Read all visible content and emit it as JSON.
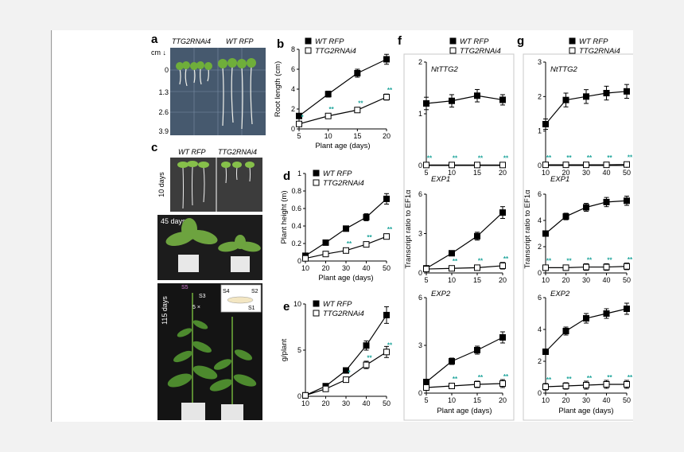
{
  "panels": {
    "a": {
      "label": "a",
      "col_labels": [
        "TTG2RNAi4",
        "WT RFP"
      ],
      "scale_unit": "cm ↓",
      "scale_ticks": [
        "0",
        "1.3",
        "2.6",
        "3.9"
      ]
    },
    "c": {
      "label": "c",
      "col_labels": [
        "WT RFP",
        "TTG2RNAi4"
      ],
      "photos": [
        {
          "text": "10 days"
        },
        {
          "text": "45 days"
        },
        {
          "text": "115 days"
        }
      ],
      "flower_labels": [
        "S4",
        "S2",
        "S1",
        "S5",
        "S3"
      ],
      "annotation": "5 ×"
    }
  },
  "chart_data": [
    {
      "id": "b",
      "label": "b",
      "type": "line",
      "x": [
        5,
        10,
        15,
        20
      ],
      "xlim": [
        5,
        20
      ],
      "xticks": [
        5,
        10,
        15,
        20
      ],
      "ylim": [
        0,
        8
      ],
      "yticks": [
        0,
        2,
        4,
        6,
        8
      ],
      "xlabel": "Plant age (days)",
      "ylabel": "Root length (cm)",
      "legend": "top-left",
      "series": [
        {
          "name": "WT RFP",
          "marker": "filled",
          "values": [
            1.3,
            3.5,
            5.6,
            7.0
          ],
          "err": [
            0.2,
            0.3,
            0.4,
            0.5
          ]
        },
        {
          "name": "TTG2RNAi4",
          "marker": "open",
          "values": [
            0.5,
            1.3,
            1.9,
            3.2
          ],
          "err": [
            0.1,
            0.2,
            0.2,
            0.3
          ],
          "sig": [
            "*",
            "**",
            "**",
            "**"
          ]
        }
      ]
    },
    {
      "id": "d",
      "label": "d",
      "type": "line",
      "x": [
        10,
        20,
        30,
        40,
        50
      ],
      "xlim": [
        10,
        50
      ],
      "xticks": [
        10,
        20,
        30,
        40,
        50
      ],
      "ylim": [
        0,
        1.0
      ],
      "yticks": [
        0,
        0.2,
        0.4,
        0.6,
        0.8,
        1.0
      ],
      "xlabel": "Plant age (days)",
      "ylabel": "Plant height (m)",
      "legend": "top-left",
      "series": [
        {
          "name": "WT RFP",
          "marker": "filled",
          "values": [
            0.06,
            0.21,
            0.37,
            0.5,
            0.71
          ],
          "err": [
            0.01,
            0.02,
            0.03,
            0.04,
            0.06
          ]
        },
        {
          "name": "TTG2RNAi4",
          "marker": "open",
          "values": [
            0.03,
            0.08,
            0.12,
            0.19,
            0.28
          ],
          "err": [
            0.01,
            0.01,
            0.02,
            0.02,
            0.03
          ],
          "sig": [
            "",
            "",
            "**",
            "**",
            "**"
          ]
        }
      ]
    },
    {
      "id": "e",
      "label": "e",
      "type": "line",
      "x": [
        10,
        20,
        30,
        40,
        50
      ],
      "xlim": [
        10,
        50
      ],
      "xticks": [
        10,
        20,
        30,
        40,
        50
      ],
      "ylim": [
        0,
        10
      ],
      "yticks": [
        0,
        5,
        10
      ],
      "xlabel": "",
      "ylabel": "g/plant",
      "legend": "top-left",
      "series": [
        {
          "name": "WT RFP",
          "marker": "filled",
          "values": [
            0.1,
            1.1,
            2.8,
            5.5,
            8.8
          ],
          "err": [
            0.05,
            0.2,
            0.3,
            0.5,
            0.9
          ]
        },
        {
          "name": "TTG2RNAi4",
          "marker": "open",
          "values": [
            0.1,
            0.8,
            1.8,
            3.4,
            4.8
          ],
          "err": [
            0.05,
            0.1,
            0.2,
            0.4,
            0.6
          ],
          "sig": [
            "",
            "",
            "*",
            "**",
            "**"
          ]
        }
      ]
    },
    {
      "id": "f",
      "label": "f",
      "type": "line",
      "legend_entries": [
        "WT RFP",
        "TTG2RNAi4"
      ],
      "ylabel": "Transcript ratio to EF1α",
      "xlabel": "Plant age (days)",
      "x": [
        5,
        10,
        15,
        20
      ],
      "xlim": [
        5,
        20
      ],
      "xticks": [
        5,
        10,
        15,
        20
      ],
      "subplots": [
        {
          "gene": "NtTTG2",
          "ylim": [
            0,
            2
          ],
          "yticks": [
            0,
            1,
            2
          ],
          "series": [
            {
              "name": "WT RFP",
              "marker": "filled",
              "values": [
                1.2,
                1.25,
                1.35,
                1.27
              ],
              "err": [
                0.12,
                0.12,
                0.12,
                0.1
              ]
            },
            {
              "name": "TTG2RNAi4",
              "marker": "open",
              "values": [
                0.01,
                0.01,
                0.01,
                0.01
              ],
              "err": [
                0,
                0,
                0,
                0
              ],
              "sig": [
                "**",
                "**",
                "**",
                "**"
              ]
            }
          ]
        },
        {
          "gene": "EXP1",
          "ylim": [
            0,
            6
          ],
          "yticks": [
            0,
            3,
            6
          ],
          "series": [
            {
              "name": "WT RFP",
              "marker": "filled",
              "values": [
                0.35,
                1.5,
                2.8,
                4.6
              ],
              "err": [
                0.1,
                0.15,
                0.3,
                0.45
              ]
            },
            {
              "name": "TTG2RNAi4",
              "marker": "open",
              "values": [
                0.3,
                0.35,
                0.4,
                0.55
              ],
              "err": [
                0.08,
                0.1,
                0.15,
                0.25
              ],
              "sig": [
                "",
                "**",
                "**",
                "**"
              ]
            }
          ]
        },
        {
          "gene": "EXP2",
          "ylim": [
            0,
            6
          ],
          "yticks": [
            0,
            3,
            6
          ],
          "series": [
            {
              "name": "WT RFP",
              "marker": "filled",
              "values": [
                0.7,
                2.0,
                2.7,
                3.5
              ],
              "err": [
                0.1,
                0.2,
                0.25,
                0.35
              ]
            },
            {
              "name": "TTG2RNAi4",
              "marker": "open",
              "values": [
                0.35,
                0.45,
                0.55,
                0.6
              ],
              "err": [
                0.1,
                0.1,
                0.2,
                0.25
              ],
              "sig": [
                "",
                "**",
                "**",
                "**"
              ]
            }
          ]
        }
      ]
    },
    {
      "id": "g",
      "label": "g",
      "type": "line",
      "legend_entries": [
        "WT RFP",
        "TTG2RNAi4"
      ],
      "ylabel": "Transcript ratio to EF1α",
      "xlabel": "Plant age (days)",
      "x": [
        10,
        20,
        30,
        40,
        50
      ],
      "xlim": [
        10,
        50
      ],
      "xticks": [
        10,
        20,
        30,
        40,
        50
      ],
      "subplots": [
        {
          "gene": "NtTTG2",
          "ylim": [
            0,
            3
          ],
          "yticks": [
            0,
            1,
            2,
            3
          ],
          "series": [
            {
              "name": "WT RFP",
              "marker": "filled",
              "values": [
                1.2,
                1.9,
                2.0,
                2.1,
                2.15
              ],
              "err": [
                0.15,
                0.2,
                0.2,
                0.2,
                0.2
              ]
            },
            {
              "name": "TTG2RNAi4",
              "marker": "open",
              "values": [
                0.02,
                0.02,
                0.02,
                0.02,
                0.03
              ],
              "err": [
                0,
                0,
                0,
                0,
                0
              ],
              "sig": [
                "**",
                "**",
                "**",
                "**",
                "**"
              ]
            }
          ]
        },
        {
          "gene": "EXP1",
          "ylim": [
            0,
            6
          ],
          "yticks": [
            0,
            2,
            4,
            6
          ],
          "series": [
            {
              "name": "WT RFP",
              "marker": "filled",
              "values": [
                3.0,
                4.3,
                5.0,
                5.4,
                5.5
              ],
              "err": [
                0.2,
                0.25,
                0.3,
                0.35,
                0.35
              ]
            },
            {
              "name": "TTG2RNAi4",
              "marker": "open",
              "values": [
                0.4,
                0.4,
                0.45,
                0.45,
                0.5
              ],
              "err": [
                0.2,
                0.2,
                0.25,
                0.25,
                0.25
              ],
              "sig": [
                "**",
                "**",
                "**",
                "**",
                "**"
              ]
            }
          ]
        },
        {
          "gene": "EXP2",
          "ylim": [
            0,
            6
          ],
          "yticks": [
            0,
            2,
            4,
            6
          ],
          "series": [
            {
              "name": "WT RFP",
              "marker": "filled",
              "values": [
                2.6,
                3.9,
                4.7,
                5.0,
                5.3
              ],
              "err": [
                0.15,
                0.25,
                0.3,
                0.3,
                0.35
              ]
            },
            {
              "name": "TTG2RNAi4",
              "marker": "open",
              "values": [
                0.4,
                0.45,
                0.5,
                0.55,
                0.55
              ],
              "err": [
                0.2,
                0.2,
                0.25,
                0.25,
                0.25
              ],
              "sig": [
                "**",
                "**",
                "**",
                "**",
                "**"
              ]
            }
          ]
        }
      ]
    }
  ]
}
